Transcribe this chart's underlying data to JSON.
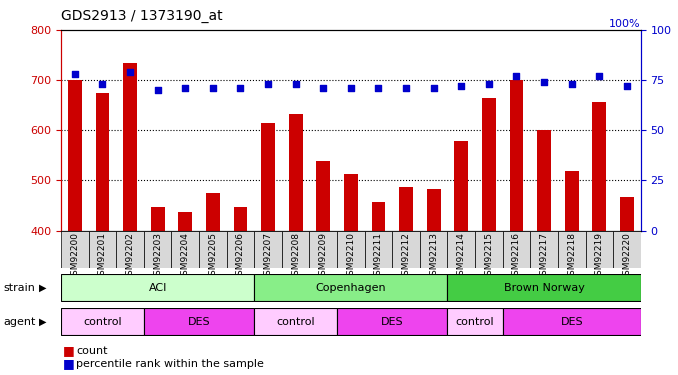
{
  "title": "GDS2913 / 1373190_at",
  "samples": [
    "GSM92200",
    "GSM92201",
    "GSM92202",
    "GSM92203",
    "GSM92204",
    "GSM92205",
    "GSM92206",
    "GSM92207",
    "GSM92208",
    "GSM92209",
    "GSM92210",
    "GSM92211",
    "GSM92212",
    "GSM92213",
    "GSM92214",
    "GSM92215",
    "GSM92216",
    "GSM92217",
    "GSM92218",
    "GSM92219",
    "GSM92220"
  ],
  "counts": [
    700,
    675,
    735,
    448,
    437,
    475,
    448,
    615,
    632,
    538,
    513,
    457,
    487,
    482,
    578,
    665,
    700,
    600,
    518,
    657,
    467
  ],
  "percentiles": [
    78,
    73,
    79,
    70,
    71,
    71,
    71,
    73,
    73,
    71,
    71,
    71,
    71,
    71,
    72,
    73,
    77,
    74,
    73,
    77,
    72
  ],
  "ylim_left": [
    400,
    800
  ],
  "ylim_right": [
    0,
    100
  ],
  "yticks_left": [
    400,
    500,
    600,
    700,
    800
  ],
  "yticks_right": [
    0,
    25,
    50,
    75,
    100
  ],
  "bar_color": "#cc0000",
  "dot_color": "#0000cc",
  "background_color": "#ffffff",
  "plot_bg_color": "#ffffff",
  "tick_bg_color": "#d8d8d8",
  "strain_groups": [
    {
      "label": "ACI",
      "start": 0,
      "end": 6,
      "color": "#ccffcc"
    },
    {
      "label": "Copenhagen",
      "start": 7,
      "end": 13,
      "color": "#88ee88"
    },
    {
      "label": "Brown Norway",
      "start": 14,
      "end": 20,
      "color": "#44cc44"
    }
  ],
  "agent_groups": [
    {
      "label": "control",
      "start": 0,
      "end": 2,
      "color": "#ffccff"
    },
    {
      "label": "DES",
      "start": 3,
      "end": 6,
      "color": "#ee44ee"
    },
    {
      "label": "control",
      "start": 7,
      "end": 9,
      "color": "#ffccff"
    },
    {
      "label": "DES",
      "start": 10,
      "end": 13,
      "color": "#ee44ee"
    },
    {
      "label": "control",
      "start": 14,
      "end": 15,
      "color": "#ffccff"
    },
    {
      "label": "DES",
      "start": 16,
      "end": 20,
      "color": "#ee44ee"
    }
  ],
  "left_axis_color": "#cc0000",
  "right_axis_color": "#0000cc",
  "bar_bottom": 400,
  "tick_label_fontsize": 6.5,
  "label_fontsize": 8,
  "title_fontsize": 10
}
